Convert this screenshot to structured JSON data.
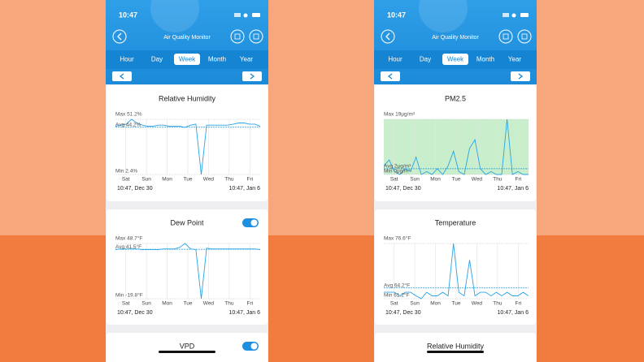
{
  "screens": [
    {
      "status_time": "10:47",
      "app_title": "Air Quality Monitor",
      "tabs": [
        "Hour",
        "Day",
        "Week",
        "Month",
        "Year"
      ],
      "active_tab": 2,
      "cards": [
        {
          "title": "Relative Humidity",
          "chart": {
            "max": {
              "value": 51.2,
              "label": "Max 51.2%"
            },
            "avg": {
              "value": 44.2,
              "label": "Avg 44.2%"
            },
            "min": {
              "value": 2.4,
              "label": "Min 2.4%"
            },
            "values": [
              45,
              46,
              47,
              51.2,
              48,
              46,
              45,
              45,
              46,
              46,
              45,
              45,
              45,
              44,
              46,
              47,
              2.4,
              46,
              46,
              46,
              46,
              46,
              47,
              48,
              48,
              47,
              47,
              45
            ],
            "days": [
              "Sat",
              "Sun",
              "Mon",
              "Tue",
              "Wed",
              "Thu",
              "Fri"
            ],
            "start": "10:47,  Dec 30",
            "end": "10:47,  Jan 6"
          }
        },
        {
          "title": "Dew Point",
          "toggle": true,
          "chart": {
            "max": {
              "value": 48.7,
              "label": "Max 48.7°F"
            },
            "avg": {
              "value": 41.5,
              "label": "Avg 41.5°F"
            },
            "min": {
              "value": -19.8,
              "label": "Min -19.8°F"
            },
            "values": [
              41,
              42,
              42,
              42,
              42,
              41,
              41,
              41,
              41,
              42,
              42,
              42,
              44,
              48.7,
              42,
              41,
              -19.8,
              43,
              42,
              42,
              42,
              42,
              42,
              42,
              42,
              42,
              42,
              41
            ],
            "days": [
              "Sat",
              "Sun",
              "Mon",
              "Tue",
              "Wed",
              "Thu",
              "Fri"
            ],
            "start": "10:47,  Dec 30",
            "end": "10:47,  Jan 6"
          }
        },
        {
          "title": "VPD",
          "toggle": true
        }
      ]
    },
    {
      "status_time": "10:47",
      "app_title": "Air Quality Monitor",
      "tabs": [
        "Hour",
        "Day",
        "Week",
        "Month",
        "Year"
      ],
      "active_tab": 2,
      "cards": [
        {
          "title": "PM2.5",
          "chart": {
            "max": {
              "value": 19,
              "label": "Max 19μg/m³"
            },
            "avg": {
              "value": 2,
              "label": "Avg 2μg/m³"
            },
            "min": {
              "value": 0,
              "label": "Min 0μg/m³"
            },
            "shade": "#c8eecb",
            "values": [
              3,
              5,
              1,
              0,
              2,
              1,
              6,
              0,
              1,
              0,
              2,
              0,
              3,
              8,
              1,
              0,
              9,
              12,
              2,
              0,
              1,
              0,
              0,
              19,
              0,
              1,
              0,
              0
            ],
            "days": [
              "Sat",
              "Sun",
              "Mon",
              "Tue",
              "Wed",
              "Thu",
              "Fri"
            ],
            "start": "10:47,  Dec 30",
            "end": "10:47,  Jan 6"
          }
        },
        {
          "title": "Temperature",
          "chart": {
            "max": {
              "value": 76.6,
              "label": "Max 76.6°F"
            },
            "avg": {
              "value": 64.2,
              "label": "Avg 64.2°F"
            },
            "min": {
              "value": 61.2,
              "label": "Min 61.2°F"
            },
            "values": [
              63,
              63,
              63,
              62,
              63,
              63,
              62,
              61.2,
              63,
              62,
              62,
              63,
              62,
              76.6,
              63,
              62,
              72,
              62,
              63,
              63,
              62,
              63,
              62,
              63,
              62,
              62,
              63,
              62
            ],
            "days": [
              "Sat",
              "Sun",
              "Mon",
              "Tue",
              "Wed",
              "Thu",
              "Fri"
            ],
            "start": "10:47,  Dec 30",
            "end": "10:47,  Jan 6"
          }
        },
        {
          "title": "Relative Humidity"
        }
      ]
    }
  ]
}
